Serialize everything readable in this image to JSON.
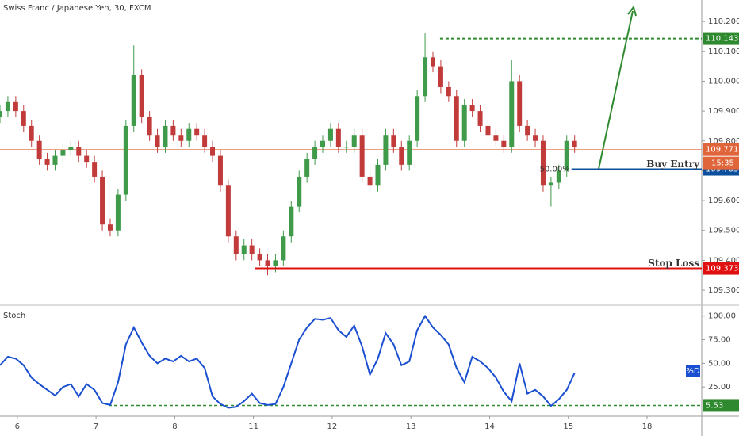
{
  "chart_data": [
    {
      "type": "candlestick",
      "title": "Swiss Franc / Japanese Yen, 30, FXCM",
      "x": [
        -0.22,
        -0.12,
        -0.02,
        0.08,
        0.18,
        0.28,
        0.38,
        0.48,
        0.58,
        0.68,
        0.78,
        0.88,
        0.98,
        1.08,
        1.18,
        1.28,
        1.38,
        1.48,
        1.58,
        1.68,
        1.78,
        1.88,
        1.98,
        2.08,
        2.18,
        2.28,
        2.38,
        2.48,
        2.58,
        2.68,
        2.78,
        2.88,
        2.98,
        3.08,
        3.18,
        3.28,
        3.38,
        3.48,
        3.58,
        3.68,
        3.78,
        3.88,
        3.98,
        4.08,
        4.18,
        4.28,
        4.38,
        4.48,
        4.58,
        4.68,
        4.78,
        4.88,
        4.98,
        5.08,
        5.18,
        5.28,
        5.38,
        5.48,
        5.58,
        5.68,
        5.78,
        5.88,
        5.98,
        6.08,
        6.18,
        6.28,
        6.38,
        6.48,
        6.58,
        6.68,
        6.78,
        6.88,
        6.98,
        7.08
      ],
      "open": [
        109.88,
        109.9,
        109.93,
        109.9,
        109.85,
        109.8,
        109.74,
        109.72,
        109.75,
        109.77,
        109.78,
        109.75,
        109.73,
        109.68,
        109.52,
        109.5,
        109.62,
        109.85,
        110.02,
        109.88,
        109.82,
        109.78,
        109.85,
        109.82,
        109.8,
        109.84,
        109.82,
        109.78,
        109.75,
        109.65,
        109.48,
        109.42,
        109.45,
        109.42,
        109.4,
        109.38,
        109.4,
        109.48,
        109.58,
        109.68,
        109.74,
        109.78,
        109.8,
        109.84,
        109.78,
        109.78,
        109.82,
        109.68,
        109.65,
        109.72,
        109.82,
        109.78,
        109.72,
        109.8,
        109.95,
        110.08,
        110.05,
        109.98,
        109.95,
        109.8,
        109.92,
        109.9,
        109.85,
        109.82,
        109.8,
        109.78,
        110.0,
        109.85,
        109.82,
        109.8,
        109.65,
        109.66,
        109.7,
        109.8
      ],
      "high": [
        109.92,
        109.95,
        109.95,
        109.92,
        109.87,
        109.82,
        109.76,
        109.77,
        109.79,
        109.8,
        109.8,
        109.77,
        109.75,
        109.7,
        109.54,
        109.64,
        109.87,
        110.12,
        110.04,
        109.9,
        109.84,
        109.87,
        109.87,
        109.84,
        109.86,
        109.86,
        109.84,
        109.8,
        109.77,
        109.67,
        109.5,
        109.47,
        109.47,
        109.44,
        109.42,
        109.42,
        109.5,
        109.6,
        109.7,
        109.76,
        109.8,
        109.82,
        109.86,
        109.86,
        109.8,
        109.84,
        109.84,
        109.7,
        109.74,
        109.84,
        109.84,
        109.8,
        109.82,
        109.97,
        110.16,
        110.1,
        110.07,
        110.0,
        109.97,
        109.94,
        109.94,
        109.92,
        109.87,
        109.84,
        109.82,
        110.07,
        110.02,
        109.87,
        109.84,
        109.82,
        109.68,
        109.72,
        109.82,
        109.82
      ],
      "low": [
        109.86,
        109.88,
        109.88,
        109.83,
        109.78,
        109.72,
        109.7,
        109.7,
        109.73,
        109.75,
        109.73,
        109.71,
        109.66,
        109.5,
        109.48,
        109.48,
        109.6,
        109.83,
        109.86,
        109.8,
        109.76,
        109.76,
        109.8,
        109.78,
        109.78,
        109.8,
        109.76,
        109.73,
        109.63,
        109.46,
        109.4,
        109.4,
        109.4,
        109.38,
        109.35,
        109.36,
        109.38,
        109.46,
        109.56,
        109.66,
        109.72,
        109.76,
        109.78,
        109.76,
        109.76,
        109.76,
        109.66,
        109.63,
        109.63,
        109.7,
        109.76,
        109.7,
        109.7,
        109.78,
        109.93,
        110.03,
        109.96,
        109.93,
        109.78,
        109.78,
        109.88,
        109.83,
        109.8,
        109.78,
        109.76,
        109.76,
        109.83,
        109.8,
        109.78,
        109.63,
        109.58,
        109.64,
        109.68,
        109.76
      ],
      "close": [
        109.9,
        109.93,
        109.9,
        109.85,
        109.8,
        109.74,
        109.72,
        109.75,
        109.77,
        109.78,
        109.75,
        109.73,
        109.68,
        109.52,
        109.5,
        109.62,
        109.85,
        110.02,
        109.88,
        109.82,
        109.78,
        109.85,
        109.82,
        109.8,
        109.84,
        109.82,
        109.78,
        109.75,
        109.65,
        109.48,
        109.42,
        109.45,
        109.42,
        109.4,
        109.38,
        109.4,
        109.48,
        109.58,
        109.68,
        109.74,
        109.78,
        109.8,
        109.84,
        109.78,
        109.78,
        109.82,
        109.68,
        109.65,
        109.72,
        109.82,
        109.78,
        109.72,
        109.8,
        109.95,
        110.08,
        110.05,
        109.98,
        109.95,
        109.8,
        109.92,
        109.9,
        109.85,
        109.82,
        109.8,
        109.78,
        110.0,
        109.85,
        109.82,
        109.8,
        109.65,
        109.66,
        109.7,
        109.8,
        109.78
      ],
      "up_color": "#3f9a4a",
      "down_color": "#c23b3b",
      "xlim": [
        -0.22,
        8.695
      ],
      "xticks": [
        {
          "value": 0,
          "label": "6"
        },
        {
          "value": 1,
          "label": "7"
        },
        {
          "value": 2,
          "label": "8"
        },
        {
          "value": 3,
          "label": "11"
        },
        {
          "value": 4,
          "label": "12"
        },
        {
          "value": 5,
          "label": "13"
        },
        {
          "value": 6,
          "label": "14"
        },
        {
          "value": 7,
          "label": "15"
        },
        {
          "value": 8,
          "label": "18"
        }
      ],
      "ylim": [
        109.255,
        110.272
      ],
      "yticks": [
        {
          "value": 109.3,
          "label": "109.300"
        },
        {
          "value": 109.4,
          "label": "109.400"
        },
        {
          "value": 109.5,
          "label": "109.500"
        },
        {
          "value": 109.6,
          "label": "109.600"
        },
        {
          "value": 109.7,
          "label": "109.700"
        },
        {
          "value": 109.8,
          "label": "109.800"
        },
        {
          "value": 109.9,
          "label": "109.900"
        },
        {
          "value": 110.0,
          "label": "110.000"
        },
        {
          "value": 110.1,
          "label": "110.100"
        },
        {
          "value": 110.2,
          "label": "110.200"
        }
      ],
      "current_price": 109.771,
      "current_color": "#e0653a",
      "countdown": "15:35",
      "fib_label": "50.00%",
      "levels": [
        {
          "name": "Buy Entry",
          "value": 109.705,
          "x_start": 7.04,
          "color": "#0b4f9c",
          "dashed": false
        },
        {
          "name": "Stop Loss",
          "value": 109.373,
          "x_start": 3.02,
          "color": "#e01010",
          "dashed": false
        },
        {
          "value": 110.143,
          "x_start": 5.37,
          "color": "#2f8a2f",
          "dashed": true
        }
      ]
    },
    {
      "type": "line",
      "title": "Stoch",
      "series": [
        {
          "name": "%D",
          "color": "#1a4fd1",
          "values": [
            48,
            57,
            55,
            48,
            35,
            28,
            22,
            16,
            25,
            28,
            15,
            28,
            22,
            8,
            6,
            30,
            70,
            88,
            72,
            58,
            50,
            55,
            52,
            58,
            52,
            55,
            45,
            15,
            7,
            3,
            4,
            10,
            18,
            8,
            6,
            7,
            25,
            50,
            75,
            88,
            97,
            96,
            98,
            85,
            78,
            90,
            68,
            38,
            55,
            82,
            70,
            48,
            52,
            85,
            100,
            88,
            80,
            70,
            45,
            30,
            57,
            52,
            45,
            35,
            20,
            10,
            50,
            18,
            22,
            15,
            5,
            12,
            22,
            40
          ]
        }
      ],
      "ylim": [
        -5,
        109
      ],
      "yticks": [
        {
          "value": 25,
          "label": "25.00"
        },
        {
          "value": 50,
          "label": "50.00"
        },
        {
          "value": 75,
          "label": "75.00"
        },
        {
          "value": 100,
          "label": "100.00"
        }
      ],
      "levels": [
        {
          "value": 5.53,
          "x_start": 1.16,
          "color": "#2f8a2f",
          "dashed": true
        }
      ]
    }
  ]
}
